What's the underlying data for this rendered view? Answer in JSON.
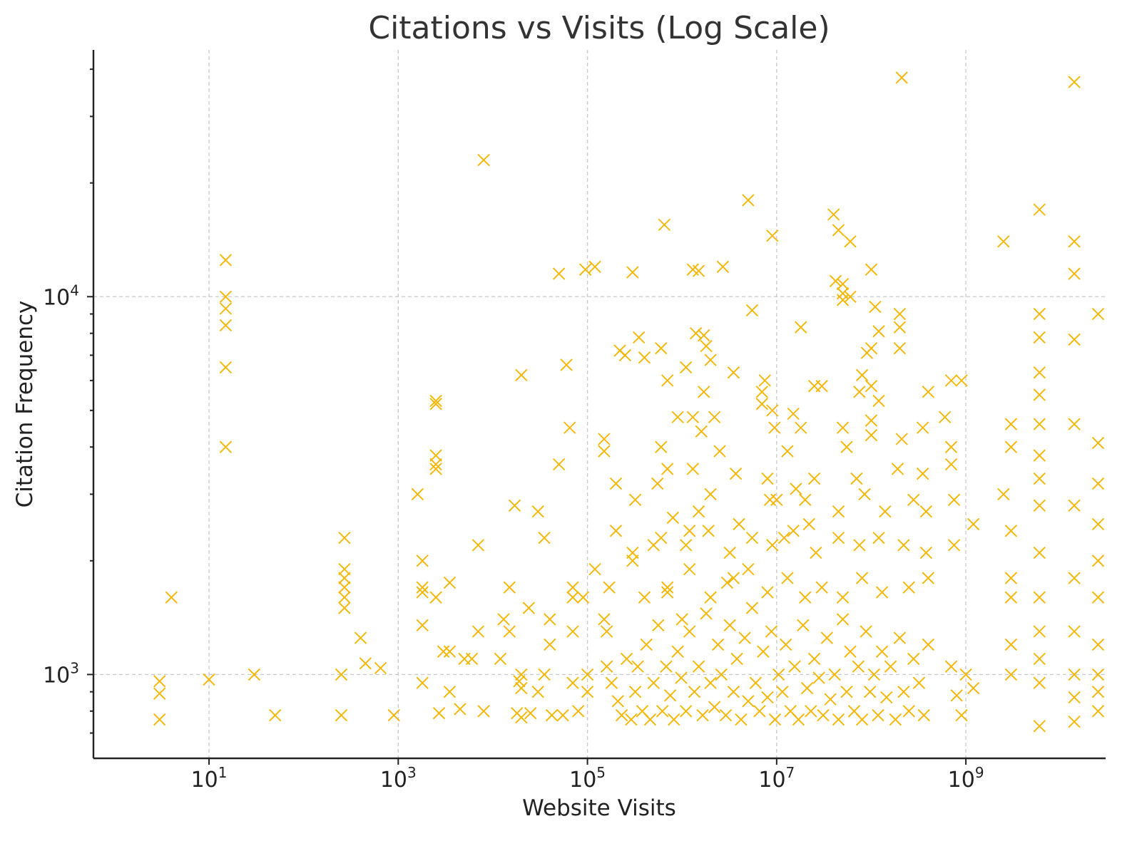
{
  "chart_data": {
    "type": "scatter",
    "title": "Citations vs Visits (Log Scale)",
    "xlabel": "Website Visits",
    "ylabel": "Citation Frequency",
    "xscale": "log",
    "yscale": "log",
    "xlim": [
      0.6,
      30000000000
    ],
    "ylim": [
      600,
      45000
    ],
    "xticks": [
      {
        "value": 10,
        "base": "10",
        "exp": "1"
      },
      {
        "value": 1000,
        "base": "10",
        "exp": "3"
      },
      {
        "value": 100000,
        "base": "10",
        "exp": "5"
      },
      {
        "value": 10000000,
        "base": "10",
        "exp": "7"
      },
      {
        "value": 1000000000,
        "base": "10",
        "exp": "9"
      }
    ],
    "yticks": [
      {
        "value": 1000,
        "base": "10",
        "exp": "3"
      },
      {
        "value": 10000,
        "base": "10",
        "exp": "4"
      }
    ],
    "grid": true,
    "marker": "x",
    "color": "#f2b705",
    "points": [
      [
        3,
        960
      ],
      [
        3,
        890
      ],
      [
        3,
        760
      ],
      [
        4,
        1600
      ],
      [
        10,
        970
      ],
      [
        15,
        12500
      ],
      [
        15,
        10000
      ],
      [
        15,
        9300
      ],
      [
        15,
        8400
      ],
      [
        15,
        6500
      ],
      [
        15,
        4000
      ],
      [
        30,
        1000
      ],
      [
        50,
        780
      ],
      [
        250,
        1000
      ],
      [
        250,
        780
      ],
      [
        270,
        2300
      ],
      [
        270,
        1900
      ],
      [
        270,
        1800
      ],
      [
        270,
        1700
      ],
      [
        270,
        1600
      ],
      [
        270,
        1500
      ],
      [
        400,
        1250
      ],
      [
        450,
        1070
      ],
      [
        650,
        1040
      ],
      [
        900,
        780
      ],
      [
        1600,
        3000
      ],
      [
        1800,
        2000
      ],
      [
        1800,
        1700
      ],
      [
        1800,
        1650
      ],
      [
        1800,
        1350
      ],
      [
        1800,
        950
      ],
      [
        2500,
        5300
      ],
      [
        2500,
        5200
      ],
      [
        2500,
        3800
      ],
      [
        2500,
        3600
      ],
      [
        2500,
        3500
      ],
      [
        2500,
        1600
      ],
      [
        2700,
        790
      ],
      [
        3000,
        1150
      ],
      [
        3500,
        1150
      ],
      [
        3500,
        1750
      ],
      [
        3500,
        900
      ],
      [
        4500,
        810
      ],
      [
        5000,
        1100
      ],
      [
        6000,
        1100
      ],
      [
        7000,
        2200
      ],
      [
        7000,
        1300
      ],
      [
        8000,
        800
      ],
      [
        8000,
        23000
      ],
      [
        12000,
        1100
      ],
      [
        13000,
        1400
      ],
      [
        15000,
        1700
      ],
      [
        15000,
        1300
      ],
      [
        17000,
        2800
      ],
      [
        18000,
        790
      ],
      [
        19000,
        960
      ],
      [
        20000,
        920
      ],
      [
        20000,
        1000
      ],
      [
        20000,
        6200
      ],
      [
        20000,
        770
      ],
      [
        24000,
        1500
      ],
      [
        25000,
        790
      ],
      [
        30000,
        2700
      ],
      [
        30000,
        900
      ],
      [
        35000,
        2300
      ],
      [
        35000,
        1000
      ],
      [
        40000,
        1400
      ],
      [
        40000,
        1200
      ],
      [
        42000,
        780
      ],
      [
        50000,
        11500
      ],
      [
        50000,
        3600
      ],
      [
        55000,
        780
      ],
      [
        60000,
        6600
      ],
      [
        65000,
        4500
      ],
      [
        70000,
        1700
      ],
      [
        70000,
        1600
      ],
      [
        70000,
        1300
      ],
      [
        70000,
        950
      ],
      [
        80000,
        800
      ],
      [
        90000,
        1600
      ],
      [
        95000,
        11800
      ],
      [
        100000,
        1000
      ],
      [
        100000,
        900
      ],
      [
        120000,
        12000
      ],
      [
        120000,
        1900
      ],
      [
        150000,
        4200
      ],
      [
        150000,
        3900
      ],
      [
        150000,
        1400
      ],
      [
        160000,
        1050
      ],
      [
        170000,
        1700
      ],
      [
        200000,
        3200
      ],
      [
        200000,
        2400
      ],
      [
        220000,
        7200
      ],
      [
        250000,
        7000
      ],
      [
        300000,
        11600
      ],
      [
        300000,
        2000
      ],
      [
        320000,
        2900
      ],
      [
        350000,
        7800
      ],
      [
        400000,
        6900
      ],
      [
        500000,
        2200
      ],
      [
        550000,
        3200
      ],
      [
        600000,
        7300
      ],
      [
        600000,
        4000
      ],
      [
        650000,
        15500
      ],
      [
        700000,
        3500
      ],
      [
        700000,
        1650
      ],
      [
        700000,
        6000
      ],
      [
        800000,
        2600
      ],
      [
        900000,
        4800
      ],
      [
        1000000,
        1400
      ],
      [
        1100000,
        6500
      ],
      [
        1200000,
        2400
      ],
      [
        1300000,
        11800
      ],
      [
        1300000,
        4800
      ],
      [
        1300000,
        3500
      ],
      [
        1400000,
        8000
      ],
      [
        1500000,
        11700
      ],
      [
        1500000,
        2700
      ],
      [
        1600000,
        4400
      ],
      [
        1700000,
        7900
      ],
      [
        1700000,
        5600
      ],
      [
        1800000,
        7400
      ],
      [
        2000000,
        3000
      ],
      [
        2000000,
        6800
      ],
      [
        2200000,
        4800
      ],
      [
        2500000,
        3900
      ],
      [
        2700000,
        12000
      ],
      [
        3500000,
        1800
      ],
      [
        3500000,
        6300
      ],
      [
        3700000,
        3400
      ],
      [
        4000000,
        2500
      ],
      [
        5000000,
        18000
      ],
      [
        5500000,
        9200
      ],
      [
        7000000,
        5600
      ],
      [
        7000000,
        5200
      ],
      [
        7500000,
        6000
      ],
      [
        8000000,
        3300
      ],
      [
        8500000,
        2900
      ],
      [
        9000000,
        14500
      ],
      [
        9000000,
        5000
      ],
      [
        9500000,
        4500
      ],
      [
        10000000,
        2900
      ],
      [
        12000000,
        2300
      ],
      [
        13000000,
        3900
      ],
      [
        15000000,
        4900
      ],
      [
        16000000,
        3100
      ],
      [
        18000000,
        8300
      ],
      [
        18000000,
        4500
      ],
      [
        20000000,
        2900
      ],
      [
        22000000,
        2500
      ],
      [
        25000000,
        5800
      ],
      [
        25000000,
        3300
      ],
      [
        30000000,
        5800
      ],
      [
        40000000,
        16500
      ],
      [
        42000000,
        11000
      ],
      [
        45000000,
        15000
      ],
      [
        45000000,
        2700
      ],
      [
        50000000,
        10800
      ],
      [
        50000000,
        10200
      ],
      [
        50000000,
        9800
      ],
      [
        50000000,
        4500
      ],
      [
        55000000,
        4000
      ],
      [
        60000000,
        14000
      ],
      [
        60000000,
        10000
      ],
      [
        70000000,
        3300
      ],
      [
        75000000,
        5600
      ],
      [
        80000000,
        6200
      ],
      [
        85000000,
        3000
      ],
      [
        90000000,
        7100
      ],
      [
        100000000,
        11800
      ],
      [
        100000000,
        7300
      ],
      [
        100000000,
        5800
      ],
      [
        100000000,
        4700
      ],
      [
        100000000,
        4300
      ],
      [
        110000000,
        9400
      ],
      [
        120000000,
        5300
      ],
      [
        120000000,
        8100
      ],
      [
        140000000,
        2700
      ],
      [
        190000000,
        3500
      ],
      [
        200000000,
        9000
      ],
      [
        200000000,
        8300
      ],
      [
        200000000,
        7300
      ],
      [
        210000000,
        4200
      ],
      [
        210000000,
        38000
      ],
      [
        280000000,
        2900
      ],
      [
        350000000,
        4500
      ],
      [
        350000000,
        3400
      ],
      [
        380000000,
        2700
      ],
      [
        400000000,
        5600
      ],
      [
        600000000,
        4800
      ],
      [
        700000000,
        6000
      ],
      [
        700000000,
        4000
      ],
      [
        700000000,
        3600
      ],
      [
        750000000,
        2900
      ],
      [
        900000000,
        6000
      ],
      [
        1200000000,
        2500
      ],
      [
        1200000000,
        920
      ],
      [
        2500000000,
        14000
      ],
      [
        2500000000,
        3000
      ],
      [
        3000000000,
        4600
      ],
      [
        3000000000,
        4000
      ],
      [
        3000000000,
        2400
      ],
      [
        3000000000,
        1800
      ],
      [
        3000000000,
        1600
      ],
      [
        3000000000,
        1200
      ],
      [
        3000000000,
        1000
      ],
      [
        6000000000,
        17000
      ],
      [
        6000000000,
        9000
      ],
      [
        6000000000,
        7800
      ],
      [
        6000000000,
        6300
      ],
      [
        6000000000,
        5500
      ],
      [
        6000000000,
        4600
      ],
      [
        6000000000,
        3800
      ],
      [
        6000000000,
        3300
      ],
      [
        6000000000,
        2800
      ],
      [
        6000000000,
        2100
      ],
      [
        6000000000,
        1600
      ],
      [
        6000000000,
        1300
      ],
      [
        6000000000,
        1100
      ],
      [
        6000000000,
        950
      ],
      [
        6000000000,
        730
      ],
      [
        14000000000,
        37000
      ],
      [
        14000000000,
        14000
      ],
      [
        14000000000,
        11500
      ],
      [
        14000000000,
        7700
      ],
      [
        14000000000,
        4600
      ],
      [
        14000000000,
        2800
      ],
      [
        14000000000,
        1800
      ],
      [
        14000000000,
        1300
      ],
      [
        14000000000,
        1000
      ],
      [
        14000000000,
        870
      ],
      [
        14000000000,
        750
      ],
      [
        25000000000,
        9000
      ],
      [
        25000000000,
        4100
      ],
      [
        25000000000,
        3200
      ],
      [
        25000000000,
        2500
      ],
      [
        25000000000,
        2000
      ],
      [
        25000000000,
        1600
      ],
      [
        25000000000,
        1200
      ],
      [
        25000000000,
        1000
      ],
      [
        25000000000,
        900
      ],
      [
        25000000000,
        800
      ],
      [
        160000,
        1300
      ],
      [
        180000,
        950
      ],
      [
        210000,
        850
      ],
      [
        230000,
        780
      ],
      [
        260000,
        1100
      ],
      [
        290000,
        760
      ],
      [
        320000,
        900
      ],
      [
        340000,
        1050
      ],
      [
        380000,
        800
      ],
      [
        420000,
        1200
      ],
      [
        460000,
        760
      ],
      [
        500000,
        950
      ],
      [
        560000,
        1350
      ],
      [
        620000,
        800
      ],
      [
        680000,
        1050
      ],
      [
        750000,
        880
      ],
      [
        820000,
        760
      ],
      [
        900000,
        1150
      ],
      [
        980000,
        980
      ],
      [
        1100000,
        800
      ],
      [
        1200000,
        1300
      ],
      [
        1350000,
        900
      ],
      [
        1500000,
        1050
      ],
      [
        1650000,
        780
      ],
      [
        1800000,
        1450
      ],
      [
        2000000,
        950
      ],
      [
        2200000,
        820
      ],
      [
        2400000,
        1200
      ],
      [
        2600000,
        1000
      ],
      [
        2900000,
        780
      ],
      [
        3200000,
        1350
      ],
      [
        3500000,
        900
      ],
      [
        3800000,
        1100
      ],
      [
        4200000,
        760
      ],
      [
        4600000,
        1250
      ],
      [
        5000000,
        850
      ],
      [
        5500000,
        1500
      ],
      [
        6000000,
        950
      ],
      [
        6600000,
        800
      ],
      [
        7200000,
        1150
      ],
      [
        8000000,
        870
      ],
      [
        8800000,
        1300
      ],
      [
        9600000,
        760
      ],
      [
        10500000,
        1000
      ],
      [
        11500000,
        900
      ],
      [
        12500000,
        1200
      ],
      [
        14000000,
        800
      ],
      [
        15500000,
        1050
      ],
      [
        17000000,
        760
      ],
      [
        19000000,
        1350
      ],
      [
        21000000,
        920
      ],
      [
        23000000,
        800
      ],
      [
        25000000,
        1100
      ],
      [
        28000000,
        980
      ],
      [
        31000000,
        780
      ],
      [
        34000000,
        1250
      ],
      [
        37000000,
        860
      ],
      [
        41000000,
        1000
      ],
      [
        45000000,
        760
      ],
      [
        50000000,
        1400
      ],
      [
        55000000,
        900
      ],
      [
        60000000,
        1150
      ],
      [
        66000000,
        800
      ],
      [
        73000000,
        1050
      ],
      [
        80000000,
        760
      ],
      [
        88000000,
        1300
      ],
      [
        97000000,
        900
      ],
      [
        107000000,
        1000
      ],
      [
        118000000,
        780
      ],
      [
        130000000,
        1150
      ],
      [
        145000000,
        870
      ],
      [
        160000000,
        1050
      ],
      [
        180000000,
        760
      ],
      [
        200000000,
        1250
      ],
      [
        220000000,
        900
      ],
      [
        250000000,
        800
      ],
      [
        280000000,
        1100
      ],
      [
        320000000,
        950
      ],
      [
        360000000,
        780
      ],
      [
        400000000,
        1200
      ],
      [
        700000000,
        1050
      ],
      [
        800000000,
        880
      ],
      [
        900000000,
        780
      ],
      [
        1000000000,
        1000
      ],
      [
        400000,
        1600
      ],
      [
        700000,
        1700
      ],
      [
        1200000,
        1900
      ],
      [
        2000000,
        1600
      ],
      [
        3000000,
        1750
      ],
      [
        5000000,
        1900
      ],
      [
        8000000,
        1650
      ],
      [
        13000000,
        1800
      ],
      [
        20000000,
        1600
      ],
      [
        30000000,
        1700
      ],
      [
        50000000,
        1600
      ],
      [
        80000000,
        1800
      ],
      [
        130000000,
        1650
      ],
      [
        250000000,
        1700
      ],
      [
        400000000,
        1800
      ],
      [
        300000,
        2100
      ],
      [
        600000,
        2300
      ],
      [
        1100000,
        2200
      ],
      [
        1900000,
        2400
      ],
      [
        3200000,
        2100
      ],
      [
        5500000,
        2300
      ],
      [
        9000000,
        2200
      ],
      [
        15000000,
        2400
      ],
      [
        26000000,
        2100
      ],
      [
        45000000,
        2300
      ],
      [
        75000000,
        2200
      ],
      [
        120000000,
        2300
      ],
      [
        220000000,
        2200
      ],
      [
        380000000,
        2100
      ],
      [
        750000000,
        2200
      ]
    ]
  }
}
